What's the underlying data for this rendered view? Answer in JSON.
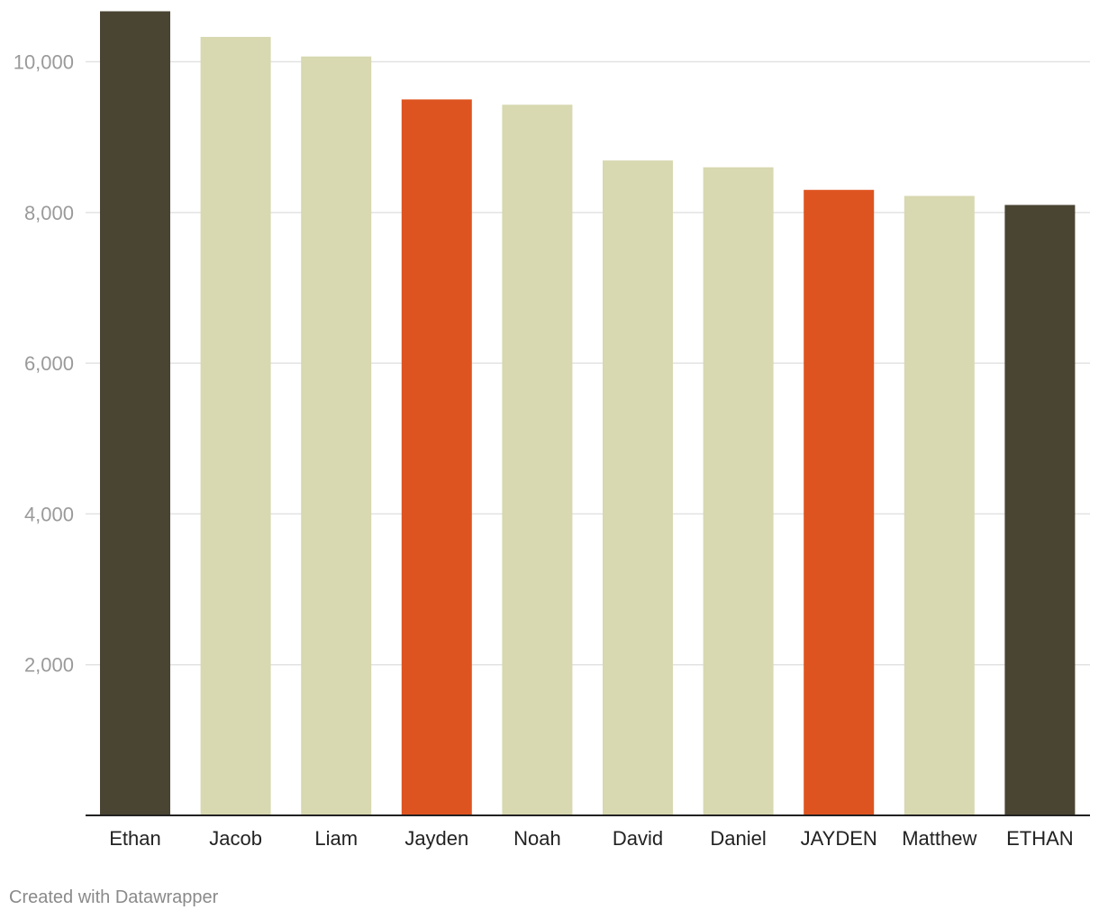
{
  "credit": "Created with Datawrapper",
  "chart_data": {
    "type": "bar",
    "title": "",
    "xlabel": "",
    "ylabel": "",
    "categories": [
      "Ethan",
      "Jacob",
      "Liam",
      "Jayden",
      "Noah",
      "David",
      "Daniel",
      "JAYDEN",
      "Matthew",
      "ETHAN"
    ],
    "values": [
      10670,
      10330,
      10070,
      9500,
      9430,
      8690,
      8600,
      8300,
      8220,
      8100
    ],
    "colors": [
      "#4a4433",
      "#d8d8b1",
      "#d8d8b1",
      "#de5420",
      "#d8d8b1",
      "#d8d8b1",
      "#d8d8b1",
      "#de5420",
      "#d8d8b1",
      "#4a4433"
    ],
    "ylim": [
      0,
      10700
    ],
    "yticks": [
      2000,
      4000,
      6000,
      8000,
      10000
    ],
    "ytick_labels": [
      "2,000",
      "4,000",
      "6,000",
      "8,000",
      "10,000"
    ],
    "grid": true,
    "legend": "none"
  }
}
